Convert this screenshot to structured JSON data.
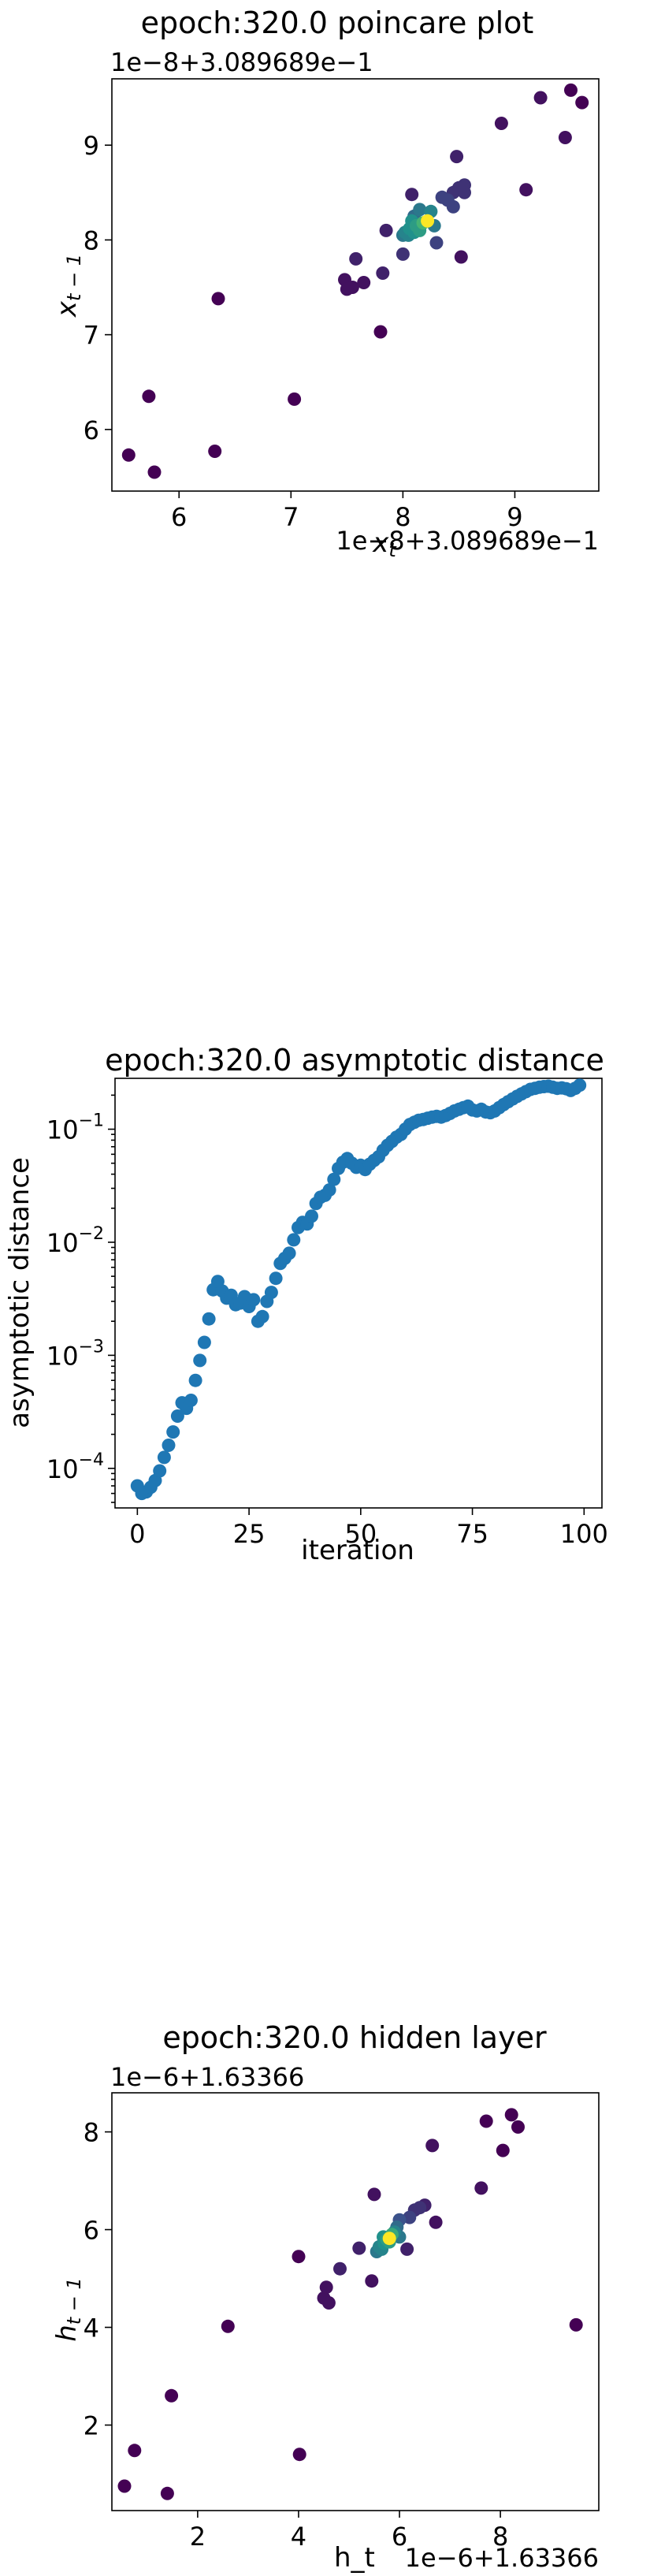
{
  "chart_data": [
    {
      "id": "poincare",
      "type": "scatter",
      "title": "epoch:320.0 poincare plot",
      "xlabel": "x_t",
      "ylabel": "x_{t-1}",
      "offset_text_x": "1e−8+3.089689e−1",
      "offset_text_y": "1e−8+3.089689e−1",
      "xlim": [
        5.4,
        9.75
      ],
      "ylim": [
        5.35,
        9.7
      ],
      "xticks": [
        6,
        7,
        8,
        9
      ],
      "yticks": [
        6,
        7,
        8,
        9
      ],
      "colormap": [
        "#440154",
        "#3b528b",
        "#21918c",
        "#5ec962",
        "#fde725"
      ],
      "points": [
        {
          "x": 5.55,
          "y": 5.73,
          "c": 0.0
        },
        {
          "x": 5.73,
          "y": 6.35,
          "c": 0.0
        },
        {
          "x": 5.78,
          "y": 5.55,
          "c": 0.0
        },
        {
          "x": 6.32,
          "y": 5.77,
          "c": 0.0
        },
        {
          "x": 6.35,
          "y": 7.38,
          "c": 0.0
        },
        {
          "x": 7.03,
          "y": 6.32,
          "c": 0.0
        },
        {
          "x": 7.8,
          "y": 7.03,
          "c": 0.0
        },
        {
          "x": 7.48,
          "y": 7.58,
          "c": 0.05
        },
        {
          "x": 7.55,
          "y": 7.5,
          "c": 0.05
        },
        {
          "x": 7.5,
          "y": 7.48,
          "c": 0.05
        },
        {
          "x": 7.58,
          "y": 7.8,
          "c": 0.1
        },
        {
          "x": 7.65,
          "y": 7.55,
          "c": 0.05
        },
        {
          "x": 7.82,
          "y": 7.65,
          "c": 0.1
        },
        {
          "x": 7.85,
          "y": 8.1,
          "c": 0.1
        },
        {
          "x": 8.52,
          "y": 7.82,
          "c": 0.05
        },
        {
          "x": 8.0,
          "y": 7.85,
          "c": 0.15
        },
        {
          "x": 8.08,
          "y": 8.48,
          "c": 0.1
        },
        {
          "x": 8.3,
          "y": 7.97,
          "c": 0.2
        },
        {
          "x": 8.35,
          "y": 8.45,
          "c": 0.2
        },
        {
          "x": 8.45,
          "y": 8.5,
          "c": 0.15
        },
        {
          "x": 8.48,
          "y": 8.88,
          "c": 0.1
        },
        {
          "x": 8.5,
          "y": 8.55,
          "c": 0.15
        },
        {
          "x": 8.55,
          "y": 8.5,
          "c": 0.15
        },
        {
          "x": 8.55,
          "y": 8.58,
          "c": 0.15
        },
        {
          "x": 8.45,
          "y": 8.35,
          "c": 0.2
        },
        {
          "x": 8.4,
          "y": 8.42,
          "c": 0.2
        },
        {
          "x": 8.88,
          "y": 9.23,
          "c": 0.05
        },
        {
          "x": 9.1,
          "y": 8.53,
          "c": 0.05
        },
        {
          "x": 9.23,
          "y": 9.5,
          "c": 0.05
        },
        {
          "x": 9.45,
          "y": 9.08,
          "c": 0.05
        },
        {
          "x": 9.5,
          "y": 9.58,
          "c": 0.0
        },
        {
          "x": 9.6,
          "y": 9.45,
          "c": 0.0
        },
        {
          "x": 8.0,
          "y": 8.05,
          "c": 0.4
        },
        {
          "x": 8.02,
          "y": 8.08,
          "c": 0.45
        },
        {
          "x": 8.05,
          "y": 8.05,
          "c": 0.45
        },
        {
          "x": 8.06,
          "y": 8.12,
          "c": 0.5
        },
        {
          "x": 8.1,
          "y": 8.08,
          "c": 0.5
        },
        {
          "x": 8.12,
          "y": 8.15,
          "c": 0.55
        },
        {
          "x": 8.08,
          "y": 8.2,
          "c": 0.5
        },
        {
          "x": 8.15,
          "y": 8.1,
          "c": 0.55
        },
        {
          "x": 8.18,
          "y": 8.18,
          "c": 0.65
        },
        {
          "x": 8.25,
          "y": 8.3,
          "c": 0.45
        },
        {
          "x": 8.15,
          "y": 8.32,
          "c": 0.4
        },
        {
          "x": 8.28,
          "y": 8.15,
          "c": 0.4
        },
        {
          "x": 8.1,
          "y": 8.25,
          "c": 0.35
        },
        {
          "x": 8.22,
          "y": 8.2,
          "c": 1.0
        }
      ]
    },
    {
      "id": "asymptotic",
      "type": "scatter",
      "title": "epoch:320.0 asymptotic distance",
      "xlabel": "iteration",
      "ylabel": "asymptotic distance",
      "xlim": [
        -5,
        104
      ],
      "ylim_log10": [
        -4.35,
        -0.55
      ],
      "log_y": true,
      "xticks": [
        0,
        25,
        50,
        75,
        100
      ],
      "yticks_log10": [
        -4,
        -3,
        -2,
        -1
      ],
      "ytick_labels": [
        "10",
        "10",
        "10",
        "10"
      ],
      "ytick_exponents": [
        "−4",
        "−3",
        "−2",
        "−1"
      ],
      "color": "#1f77b4",
      "x": [
        0,
        1,
        2,
        3,
        4,
        5,
        6,
        7,
        8,
        9,
        10,
        11,
        12,
        13,
        14,
        15,
        16,
        17,
        18,
        19,
        20,
        21,
        22,
        23,
        24,
        25,
        26,
        27,
        28,
        29,
        30,
        31,
        32,
        33,
        34,
        35,
        36,
        37,
        38,
        39,
        40,
        41,
        42,
        43,
        44,
        45,
        46,
        47,
        48,
        49,
        50,
        51,
        52,
        53,
        54,
        55,
        56,
        57,
        58,
        59,
        60,
        61,
        62,
        63,
        64,
        65,
        66,
        67,
        68,
        69,
        70,
        71,
        72,
        73,
        74,
        75,
        76,
        77,
        78,
        79,
        80,
        81,
        82,
        83,
        84,
        85,
        86,
        87,
        88,
        89,
        90,
        91,
        92,
        93,
        94,
        95,
        96,
        97,
        98,
        99
      ],
      "y": [
        7e-05,
        6e-05,
        6.2e-05,
        6.8e-05,
        7.8e-05,
        9.5e-05,
        0.000125,
        0.00016,
        0.00021,
        0.00029,
        0.00038,
        0.00034,
        0.0004,
        0.0006,
        0.0009,
        0.0013,
        0.0021,
        0.0038,
        0.0045,
        0.0037,
        0.0032,
        0.0034,
        0.0028,
        0.0029,
        0.0033,
        0.0027,
        0.0031,
        0.002,
        0.0022,
        0.003,
        0.0036,
        0.0048,
        0.0065,
        0.0072,
        0.008,
        0.0105,
        0.0135,
        0.015,
        0.0145,
        0.017,
        0.022,
        0.025,
        0.026,
        0.029,
        0.036,
        0.045,
        0.051,
        0.055,
        0.05,
        0.046,
        0.048,
        0.044,
        0.049,
        0.053,
        0.057,
        0.065,
        0.072,
        0.078,
        0.085,
        0.09,
        0.1,
        0.11,
        0.115,
        0.12,
        0.122,
        0.125,
        0.128,
        0.13,
        0.128,
        0.132,
        0.138,
        0.145,
        0.15,
        0.155,
        0.16,
        0.148,
        0.145,
        0.15,
        0.142,
        0.14,
        0.145,
        0.155,
        0.165,
        0.175,
        0.185,
        0.195,
        0.205,
        0.215,
        0.225,
        0.23,
        0.235,
        0.238,
        0.24,
        0.235,
        0.23,
        0.232,
        0.228,
        0.22,
        0.23,
        0.245
      ]
    },
    {
      "id": "hidden",
      "type": "scatter",
      "title": "epoch:320.0 hidden layer",
      "xlabel": "h_t",
      "ylabel": "h_{t-1}",
      "offset_text_x": "1e−6+1.63366",
      "offset_text_y": "1e−6+1.63366",
      "xlim": [
        0.3,
        9.95
      ],
      "ylim": [
        0.25,
        8.8
      ],
      "xticks": [
        2,
        4,
        6,
        8
      ],
      "yticks": [
        2,
        4,
        6,
        8
      ],
      "colormap": [
        "#440154",
        "#3b528b",
        "#21918c",
        "#5ec962",
        "#fde725"
      ],
      "points": [
        {
          "x": 0.55,
          "y": 0.75,
          "c": 0.0
        },
        {
          "x": 0.75,
          "y": 1.48,
          "c": 0.0
        },
        {
          "x": 1.4,
          "y": 0.6,
          "c": 0.0
        },
        {
          "x": 1.48,
          "y": 2.6,
          "c": 0.0
        },
        {
          "x": 2.6,
          "y": 4.02,
          "c": 0.0
        },
        {
          "x": 4.02,
          "y": 1.4,
          "c": 0.0
        },
        {
          "x": 4.0,
          "y": 5.45,
          "c": 0.0
        },
        {
          "x": 9.5,
          "y": 4.05,
          "c": 0.0
        },
        {
          "x": 4.5,
          "y": 4.6,
          "c": 0.05
        },
        {
          "x": 4.6,
          "y": 4.5,
          "c": 0.05
        },
        {
          "x": 4.55,
          "y": 4.82,
          "c": 0.05
        },
        {
          "x": 4.82,
          "y": 5.2,
          "c": 0.1
        },
        {
          "x": 5.2,
          "y": 5.62,
          "c": 0.1
        },
        {
          "x": 5.45,
          "y": 4.95,
          "c": 0.05
        },
        {
          "x": 5.5,
          "y": 6.72,
          "c": 0.05
        },
        {
          "x": 6.15,
          "y": 5.6,
          "c": 0.1
        },
        {
          "x": 6.3,
          "y": 6.4,
          "c": 0.15
        },
        {
          "x": 6.4,
          "y": 6.45,
          "c": 0.15
        },
        {
          "x": 6.5,
          "y": 6.5,
          "c": 0.1
        },
        {
          "x": 6.72,
          "y": 6.15,
          "c": 0.05
        },
        {
          "x": 6.65,
          "y": 7.72,
          "c": 0.05
        },
        {
          "x": 7.62,
          "y": 6.85,
          "c": 0.05
        },
        {
          "x": 7.72,
          "y": 8.22,
          "c": 0.0
        },
        {
          "x": 8.05,
          "y": 7.62,
          "c": 0.0
        },
        {
          "x": 8.22,
          "y": 8.35,
          "c": 0.0
        },
        {
          "x": 8.35,
          "y": 8.1,
          "c": 0.0
        },
        {
          "x": 6.2,
          "y": 6.25,
          "c": 0.2
        },
        {
          "x": 6.0,
          "y": 6.2,
          "c": 0.25
        },
        {
          "x": 5.55,
          "y": 5.55,
          "c": 0.4
        },
        {
          "x": 5.6,
          "y": 5.65,
          "c": 0.45
        },
        {
          "x": 5.65,
          "y": 5.6,
          "c": 0.45
        },
        {
          "x": 5.7,
          "y": 5.72,
          "c": 0.5
        },
        {
          "x": 5.75,
          "y": 5.8,
          "c": 0.55
        },
        {
          "x": 5.8,
          "y": 5.75,
          "c": 0.55
        },
        {
          "x": 5.68,
          "y": 5.85,
          "c": 0.5
        },
        {
          "x": 5.85,
          "y": 5.9,
          "c": 0.6
        },
        {
          "x": 5.9,
          "y": 5.95,
          "c": 0.45
        },
        {
          "x": 6.0,
          "y": 5.85,
          "c": 0.4
        },
        {
          "x": 5.95,
          "y": 6.05,
          "c": 0.35
        },
        {
          "x": 5.8,
          "y": 5.82,
          "c": 1.0
        }
      ]
    }
  ]
}
